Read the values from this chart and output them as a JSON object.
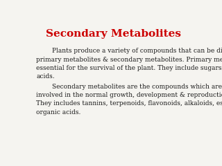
{
  "title": "Secondary Metabolites",
  "title_color": "#cc0000",
  "title_fontsize": 11,
  "background_color": "#f5f4f0",
  "paragraph1": "        Plants produce a variety of compounds that can be divided in to\nprimary metabolites & secondary metabolites. Primary metabolites are\nessential for the survival of the plant. They include sugars, proteins and amino\nacids.",
  "paragraph2": "        Secondary metabolites are the compounds which are not directly\ninvolved in the normal growth, development & reproduction of the plants.\nThey includes tannins, terpenoids, flavonoids, alkaloids, essential oils &\norganic acids.",
  "text_color": "#1a1a1a",
  "text_fontsize": 6.5,
  "font_family": "serif"
}
